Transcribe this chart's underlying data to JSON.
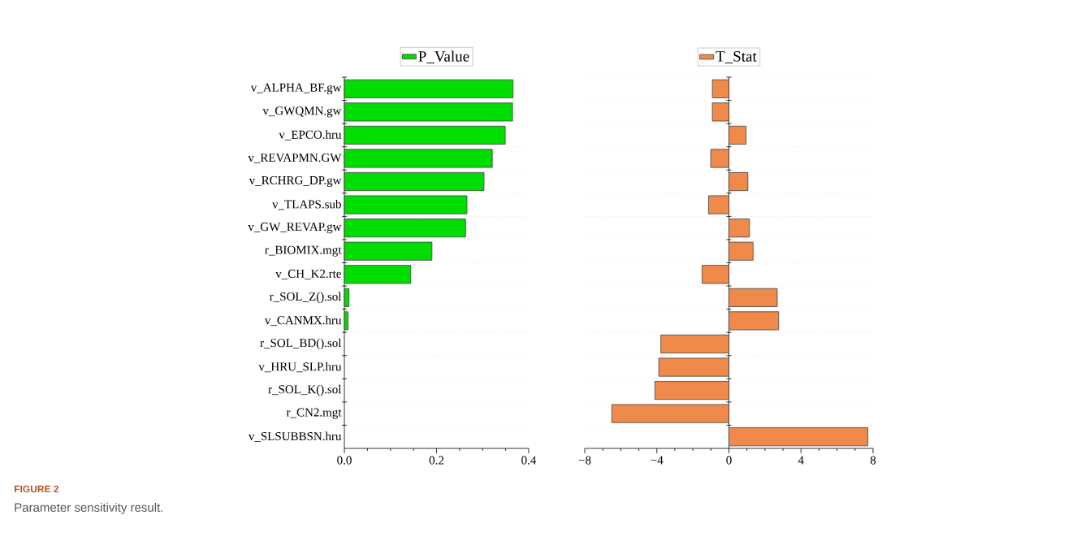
{
  "chart_data": [
    {
      "type": "bar",
      "orientation": "horizontal",
      "categories": [
        "v_ALPHA_BF.gw",
        "v_GWQMN.gw",
        "v_EPCO.hru",
        "v_REVAPMN.GW",
        "v_RCHRG_DP.gw",
        "v_TLAPS.sub",
        "v_GW_REVAP.gw",
        "r_BIOMIX.mgt",
        "v_CH_K2.rte",
        "r_SOL_Z().sol",
        "v_CANMX.hru",
        "r_SOL_BD().sol",
        "v_HRU_SLP.hru",
        "r_SOL_K().sol",
        "r_CN2.mgt",
        "v_SLSUBBSN.hru"
      ],
      "series": [
        {
          "name": "P_Value",
          "color": "#00dd00",
          "values": [
            0.366,
            0.365,
            0.349,
            0.321,
            0.303,
            0.266,
            0.263,
            0.19,
            0.144,
            0.01,
            0.008,
            0,
            0,
            0,
            0,
            0
          ]
        }
      ],
      "xlim": [
        0,
        0.4
      ],
      "xticks": [
        {
          "value": 0,
          "label": "0.0"
        },
        {
          "value": 0.2,
          "label": "0.2"
        },
        {
          "value": 0.4,
          "label": "0.4"
        }
      ],
      "grid": "y",
      "legend": "top",
      "annotations": [
        "FIGURE 2",
        "Parameter sensitivity result."
      ]
    },
    {
      "type": "bar",
      "orientation": "horizontal",
      "categories": [
        null,
        null,
        null,
        null,
        null,
        null,
        null,
        null,
        null,
        null,
        null,
        null,
        null,
        null,
        null,
        null
      ],
      "series": [
        {
          "name": "T_Stat",
          "color": "#f08a4b",
          "values": [
            -0.92,
            -0.92,
            0.95,
            -1.01,
            1.05,
            -1.13,
            1.14,
            1.34,
            -1.49,
            2.68,
            2.76,
            -3.78,
            -3.89,
            -4.11,
            -6.5,
            7.71
          ]
        }
      ],
      "xlim": [
        -8,
        8
      ],
      "xticks": [
        {
          "value": -8,
          "label": "−8"
        },
        {
          "value": -4,
          "label": "−4"
        },
        0,
        4,
        8
      ],
      "grid": "y",
      "legend": "top",
      "tick_labels": "x"
    }
  ]
}
